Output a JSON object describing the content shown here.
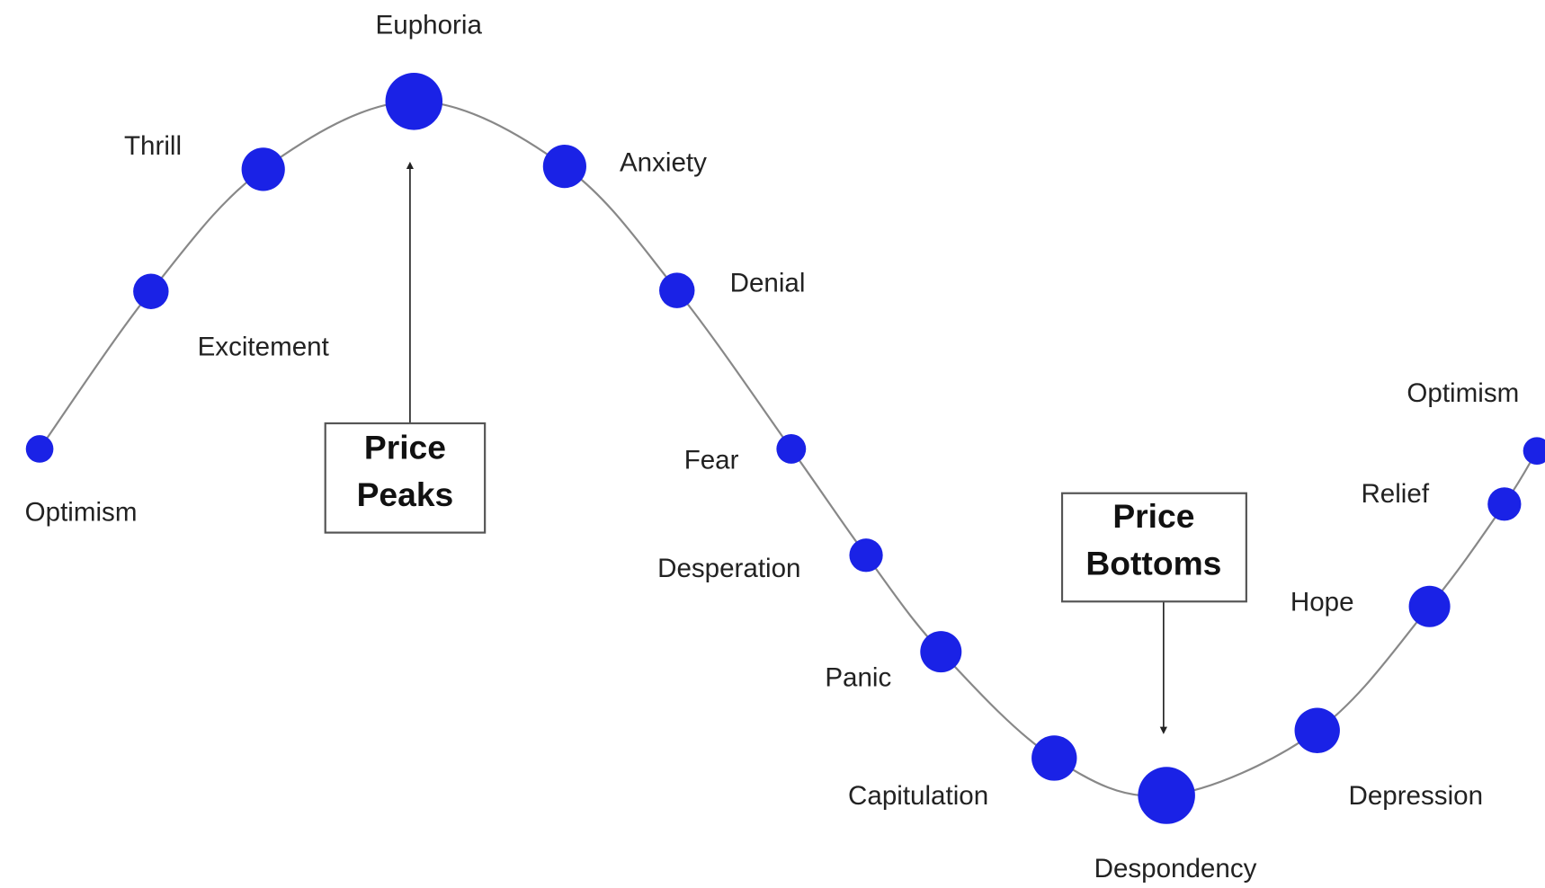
{
  "nodes": [
    {
      "label": "Optimism"
    },
    {
      "label": "Excitement"
    },
    {
      "label": "Thrill"
    },
    {
      "label": "Euphoria"
    },
    {
      "label": "Anxiety"
    },
    {
      "label": "Denial"
    },
    {
      "label": "Fear"
    },
    {
      "label": "Desperation"
    },
    {
      "label": "Panic"
    },
    {
      "label": "Capitulation"
    },
    {
      "label": "Despondency"
    },
    {
      "label": "Depression"
    },
    {
      "label": "Hope"
    },
    {
      "label": "Relief"
    },
    {
      "label": "Optimism"
    }
  ],
  "boxes": [
    {
      "lines": [
        "Price",
        "Peaks"
      ]
    },
    {
      "lines": [
        "Price",
        "Bottoms"
      ]
    }
  ]
}
